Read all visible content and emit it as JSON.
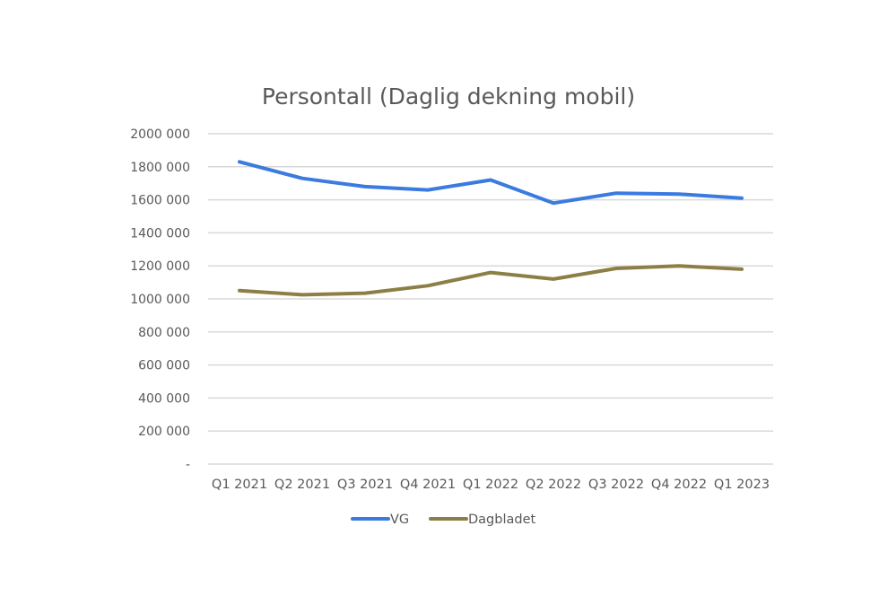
{
  "chart_data": {
    "type": "line",
    "title": "Persontall (Daglig dekning mobil)",
    "xlabel": "",
    "ylabel": "",
    "categories": [
      "Q1 2021",
      "Q2 2021",
      "Q3 2021",
      "Q4 2021",
      "Q1 2022",
      "Q2 2022",
      "Q3 2022",
      "Q4 2022",
      "Q1 2023"
    ],
    "y_ticks": [
      {
        "value": 0,
        "label": "-"
      },
      {
        "value": 200000,
        "label": "200 000"
      },
      {
        "value": 400000,
        "label": "400 000"
      },
      {
        "value": 600000,
        "label": "600 000"
      },
      {
        "value": 800000,
        "label": "800 000"
      },
      {
        "value": 1000000,
        "label": "1000 000"
      },
      {
        "value": 1200000,
        "label": "1200 000"
      },
      {
        "value": 1400000,
        "label": "1400 000"
      },
      {
        "value": 1600000,
        "label": "1600 000"
      },
      {
        "value": 1800000,
        "label": "1800 000"
      },
      {
        "value": 2000000,
        "label": "2000 000"
      }
    ],
    "ylim": [
      0,
      2000000
    ],
    "grid": true,
    "legend_position": "bottom",
    "series": [
      {
        "name": "VG",
        "color": "#3b7be0",
        "values": [
          1830000,
          1730000,
          1680000,
          1660000,
          1720000,
          1580000,
          1640000,
          1635000,
          1610000
        ]
      },
      {
        "name": "Dagbladet",
        "color": "#8c7f45",
        "values": [
          1050000,
          1025000,
          1035000,
          1080000,
          1160000,
          1120000,
          1185000,
          1200000,
          1180000
        ]
      }
    ]
  }
}
